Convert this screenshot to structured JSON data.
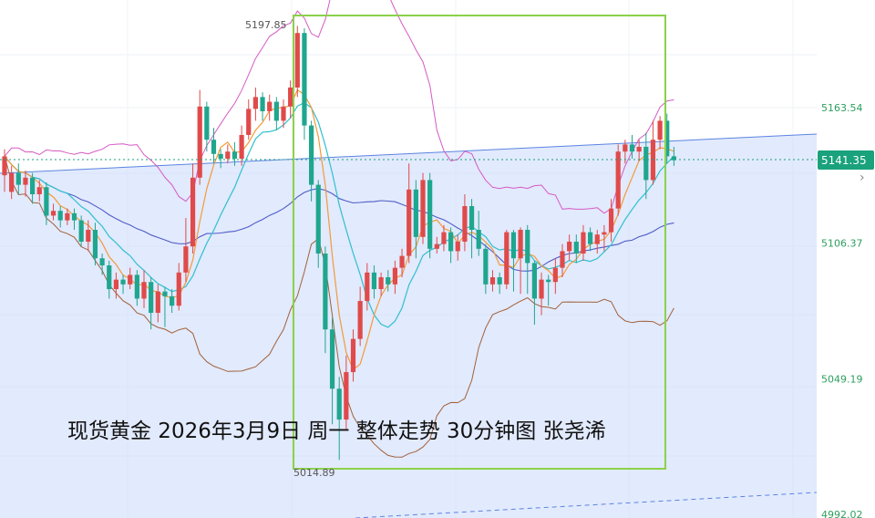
{
  "chart_data": {
    "type": "candlestick",
    "title": "现货黄金 2026年3月9日 周一 整体走势 30分钟图 张尧浠",
    "y_axis": {
      "ticks": [
        "5163.54",
        "5106.37",
        "5049.19",
        "4992.02"
      ],
      "tick_values": [
        5163.54,
        5106.37,
        5049.19,
        4992.02
      ],
      "side": "right"
    },
    "current_price": {
      "label": "5141.35",
      "value": 5141.35
    },
    "high_marker": {
      "label": "5197.85",
      "value": 5197.85
    },
    "low_marker": {
      "label": "5014.89",
      "value": 5014.89
    },
    "candles": [
      [
        5135,
        5143,
        5128,
        5146
      ],
      [
        5128,
        5136,
        5125,
        5139
      ],
      [
        5136,
        5131,
        5127,
        5140
      ],
      [
        5131,
        5134,
        5126,
        5137
      ],
      [
        5134,
        5127,
        5123,
        5136
      ],
      [
        5127,
        5130,
        5124,
        5133
      ],
      [
        5130,
        5118,
        5114,
        5132
      ],
      [
        5118,
        5120,
        5116,
        5123
      ],
      [
        5120,
        5116,
        5113,
        5122
      ],
      [
        5116,
        5119,
        5114,
        5121
      ],
      [
        5119,
        5116,
        5112,
        5121
      ],
      [
        5116,
        5107,
        5105,
        5118
      ],
      [
        5107,
        5112,
        5103,
        5116
      ],
      [
        5112,
        5100,
        5097,
        5115
      ],
      [
        5100,
        5097,
        5093,
        5102
      ],
      [
        5097,
        5087,
        5083,
        5099
      ],
      [
        5087,
        5091,
        5083,
        5094
      ],
      [
        5091,
        5089,
        5085,
        5093
      ],
      [
        5089,
        5093,
        5087,
        5096
      ],
      [
        5093,
        5083,
        5080,
        5095
      ],
      [
        5083,
        5090,
        5079,
        5095
      ],
      [
        5090,
        5077,
        5070,
        5092
      ],
      [
        5077,
        5086,
        5073,
        5089
      ],
      [
        5086,
        5084,
        5071,
        5088
      ],
      [
        5084,
        5080,
        5077,
        5087
      ],
      [
        5080,
        5094,
        5078,
        5098
      ],
      [
        5094,
        5105,
        5090,
        5117
      ],
      [
        5105,
        5134,
        5102,
        5140
      ],
      [
        5134,
        5164,
        5131,
        5171
      ],
      [
        5164,
        5150,
        5145,
        5166
      ],
      [
        5150,
        5144,
        5140,
        5155
      ],
      [
        5144,
        5142,
        5138,
        5146
      ],
      [
        5142,
        5145,
        5140,
        5148
      ],
      [
        5145,
        5142,
        5139,
        5149
      ],
      [
        5142,
        5152,
        5139,
        5156
      ],
      [
        5152,
        5163,
        5150,
        5167
      ],
      [
        5163,
        5168,
        5158,
        5172
      ],
      [
        5168,
        5162,
        5158,
        5170
      ],
      [
        5162,
        5166,
        5158,
        5169
      ],
      [
        5166,
        5158,
        5154,
        5168
      ],
      [
        5158,
        5164,
        5155,
        5167
      ],
      [
        5164,
        5172,
        5159,
        5175
      ],
      [
        5172,
        5195,
        5168,
        5198
      ],
      [
        5195,
        5156,
        5150,
        5197
      ],
      [
        5156,
        5131,
        5124,
        5158
      ],
      [
        5131,
        5102,
        5096,
        5133
      ],
      [
        5102,
        5070,
        5060,
        5105
      ],
      [
        5070,
        5045,
        5030,
        5075
      ],
      [
        5045,
        5032,
        5015,
        5050
      ],
      [
        5032,
        5052,
        5028,
        5059
      ],
      [
        5052,
        5066,
        5048,
        5070
      ],
      [
        5066,
        5082,
        5063,
        5088
      ],
      [
        5082,
        5094,
        5078,
        5098
      ],
      [
        5094,
        5087,
        5083,
        5097
      ],
      [
        5087,
        5092,
        5084,
        5094
      ],
      [
        5092,
        5089,
        5086,
        5095
      ],
      [
        5089,
        5096,
        5085,
        5099
      ],
      [
        5096,
        5101,
        5092,
        5104
      ],
      [
        5101,
        5129,
        5098,
        5140
      ],
      [
        5129,
        5109,
        5100,
        5133
      ],
      [
        5109,
        5133,
        5106,
        5136
      ],
      [
        5133,
        5104,
        5100,
        5136
      ],
      [
        5104,
        5106,
        5102,
        5109
      ],
      [
        5106,
        5111,
        5103,
        5114
      ],
      [
        5111,
        5103,
        5098,
        5113
      ],
      [
        5103,
        5107,
        5099,
        5110
      ],
      [
        5107,
        5122,
        5103,
        5127
      ],
      [
        5122,
        5112,
        5100,
        5125
      ],
      [
        5112,
        5104,
        5101,
        5120
      ],
      [
        5104,
        5089,
        5085,
        5106
      ],
      [
        5089,
        5092,
        5086,
        5095
      ],
      [
        5092,
        5089,
        5085,
        5094
      ],
      [
        5089,
        5111,
        5087,
        5112
      ],
      [
        5111,
        5100,
        5086,
        5112
      ],
      [
        5100,
        5112,
        5085,
        5113
      ],
      [
        5112,
        5098,
        5085,
        5114
      ],
      [
        5098,
        5083,
        5072,
        5099
      ],
      [
        5083,
        5091,
        5076,
        5094
      ],
      [
        5091,
        5090,
        5080,
        5093
      ],
      [
        5090,
        5096,
        5085,
        5100
      ],
      [
        5096,
        5103,
        5092,
        5106
      ],
      [
        5103,
        5107,
        5099,
        5110
      ],
      [
        5107,
        5102,
        5098,
        5110
      ],
      [
        5102,
        5111,
        5099,
        5114
      ],
      [
        5111,
        5106,
        5103,
        5113
      ],
      [
        5106,
        5110,
        5102,
        5112
      ],
      [
        5110,
        5111,
        5103,
        5114
      ],
      [
        5111,
        5121,
        5107,
        5125
      ],
      [
        5121,
        5145,
        5118,
        5148
      ],
      [
        5145,
        5148,
        5140,
        5150
      ],
      [
        5148,
        5145,
        5142,
        5152
      ],
      [
        5145,
        5147,
        5141,
        5150
      ],
      [
        5147,
        5133,
        5125,
        5153
      ],
      [
        5133,
        5150,
        5131,
        5158
      ],
      [
        5150,
        5158,
        5146,
        5160
      ],
      [
        5158,
        5143,
        5140,
        5161
      ],
      [
        5143,
        5141.35,
        5139,
        5147
      ]
    ],
    "grid": true,
    "shaded_channel": true,
    "highlight_box": true
  },
  "colors": {
    "up": "#e04a4a",
    "down": "#1fa68f",
    "ma_fast": "#f39a3a",
    "ma_mid": "#2fc0cf",
    "ma_slow": "#4e5cc7",
    "bb_upper": "#d65ac4",
    "bb_lower": "#a0613a",
    "channel_fill": "#cfdcfb",
    "channel_line": "#5b84e0",
    "box": "#8bd14a",
    "price_tag": "#1aa27c"
  }
}
